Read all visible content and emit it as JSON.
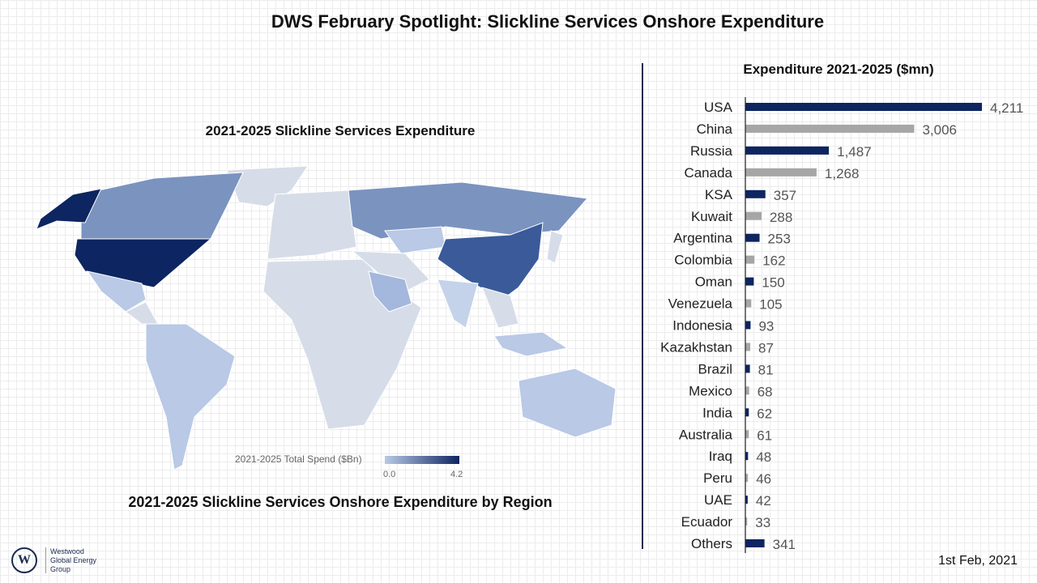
{
  "title": "DWS February Spotlight: Slickline Services Onshore Expenditure",
  "map": {
    "title": "2021-2025 Slickline Services Expenditure",
    "caption": "2021-2025 Slickline Services Onshore Expenditure by Region",
    "legend_label": "2021-2025 Total Spend ($Bn)",
    "legend_min": "0.0",
    "legend_max": "4.2",
    "colors": {
      "low": "#b9c9e6",
      "high": "#0d2560",
      "none": "#d6dde8"
    }
  },
  "chart_data": {
    "type": "bar",
    "orientation": "horizontal",
    "title": "Expenditure 2021-2025 ($mn)",
    "categories": [
      "USA",
      "China",
      "Russia",
      "Canada",
      "KSA",
      "Kuwait",
      "Argentina",
      "Colombia",
      "Oman",
      "Venezuela",
      "Indonesia",
      "Kazakhstan",
      "Brazil",
      "Mexico",
      "India",
      "Australia",
      "Iraq",
      "Peru",
      "UAE",
      "Ecuador",
      "Others"
    ],
    "values": [
      4211,
      3006,
      1487,
      1268,
      357,
      288,
      253,
      162,
      150,
      105,
      93,
      87,
      81,
      68,
      62,
      61,
      48,
      46,
      42,
      33,
      341
    ],
    "labels": [
      "4,211",
      "3,006",
      "1,487",
      "1,268",
      "357",
      "288",
      "253",
      "162",
      "150",
      "105",
      "93",
      "87",
      "81",
      "68",
      "62",
      "61",
      "48",
      "46",
      "42",
      "33",
      "341"
    ],
    "colors": [
      "#0d2560",
      "#a6a6a6"
    ],
    "xlim": [
      0,
      4211
    ]
  },
  "logo": {
    "mark": "W",
    "lines": [
      "Westwood",
      "Global Energy",
      "Group"
    ]
  },
  "date": "1st Feb, 2021"
}
